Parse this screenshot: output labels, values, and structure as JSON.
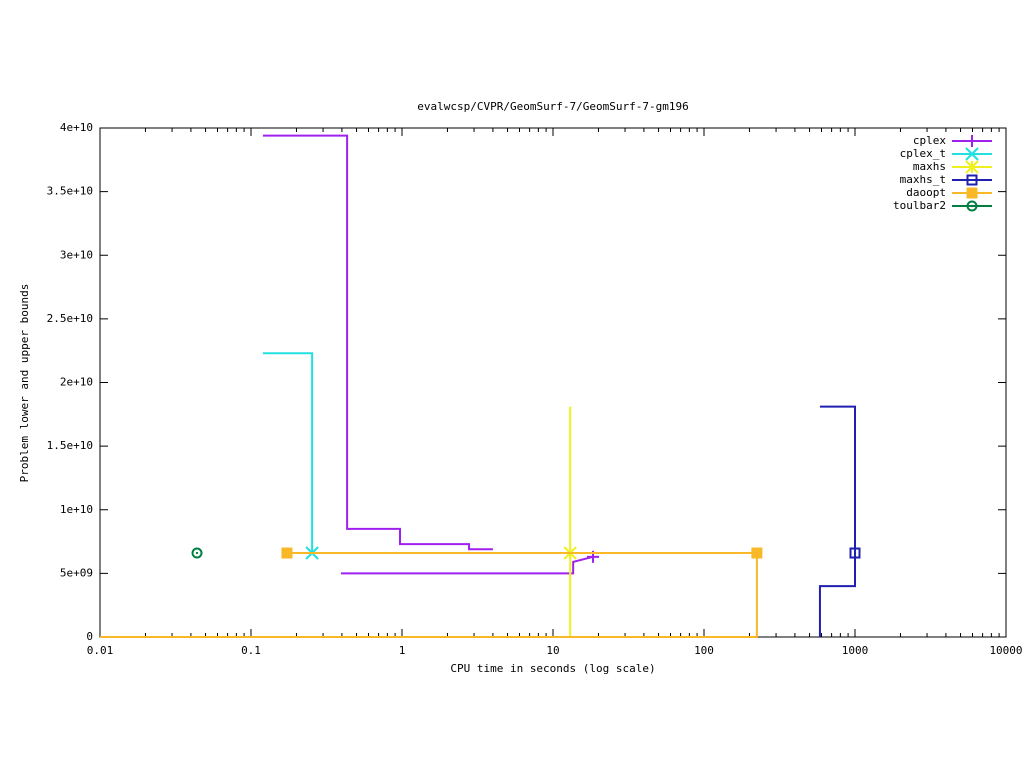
{
  "chart_data": {
    "type": "line",
    "title": "evalwcsp/CVPR/GeomSurf-7/GeomSurf-7-gm196",
    "x_label": "CPU time in seconds (log scale)",
    "y_label": "Problem lower and upper bounds",
    "xscale": "log",
    "xlim": [
      0.01,
      10000
    ],
    "xticks": [
      0.01,
      0.1,
      1,
      10,
      100,
      1000,
      10000
    ],
    "ylim": [
      0,
      40000000000
    ],
    "yticks": [
      0,
      {
        "value": 5000000000,
        "label": "5e+09"
      },
      {
        "value": 10000000000,
        "label": "1e+10"
      },
      {
        "value": 15000000000,
        "label": "1.5e+10"
      },
      {
        "value": 20000000000,
        "label": "2e+10"
      },
      {
        "value": 25000000000,
        "label": "2.5e+10"
      },
      {
        "value": 30000000000,
        "label": "3e+10"
      },
      {
        "value": 35000000000,
        "label": "3.5e+10"
      },
      {
        "value": 40000000000,
        "label": "4e+10"
      }
    ],
    "legend": "top-right",
    "series": [
      {
        "name": "cplex",
        "color": "#a020f0",
        "marker": "plus",
        "x": [
          0.12,
          0.433,
          0.433,
          0.97,
          0.97,
          2.78,
          2.78,
          4.0,
          null,
          0.394,
          13.6,
          13.6,
          18.4
        ],
        "values": [
          39400000000,
          39400000000,
          8500000000,
          8500000000,
          7300000000,
          7300000000,
          6900000000,
          6900000000,
          null,
          5000000000,
          5000000000,
          5900000000,
          6300000000
        ],
        "point_x": [
          18.4
        ],
        "point_y": [
          6300000000
        ]
      },
      {
        "name": "cplex_t",
        "color": "#20e0e0",
        "marker": "cross",
        "x": [
          0.12,
          0.254,
          0.254
        ],
        "values": [
          22300000000,
          22300000000,
          6600000000
        ],
        "point_x": [
          0.254
        ],
        "point_y": [
          6600000000
        ]
      },
      {
        "name": "maxhs",
        "color": "#f0f020",
        "marker": "star",
        "x": [
          13,
          13
        ],
        "values": [
          18100000000,
          0
        ],
        "point_x": [
          13
        ],
        "point_y": [
          6600000000
        ]
      },
      {
        "name": "maxhs_t",
        "color": "#2020b0",
        "marker": "square",
        "x": [
          586,
          586,
          1000,
          1000,
          586
        ],
        "values": [
          0,
          4000000000,
          4000000000,
          18100000000,
          18100000000
        ],
        "point_x": [
          1000
        ],
        "point_y": [
          6600000000
        ]
      },
      {
        "name": "daoopt",
        "color": "#f8b828",
        "marker": "filled-square",
        "x": [
          0.01,
          224,
          224,
          0.173
        ],
        "values": [
          0,
          0,
          6600000000,
          6600000000
        ],
        "point_x": [
          0.173,
          224
        ],
        "point_y": [
          6600000000,
          6600000000
        ]
      },
      {
        "name": "toulbar2",
        "color": "#008040",
        "marker": "circle",
        "x": [],
        "values": [],
        "point_x": [
          0.0439
        ],
        "point_y": [
          6600000000
        ]
      }
    ]
  }
}
